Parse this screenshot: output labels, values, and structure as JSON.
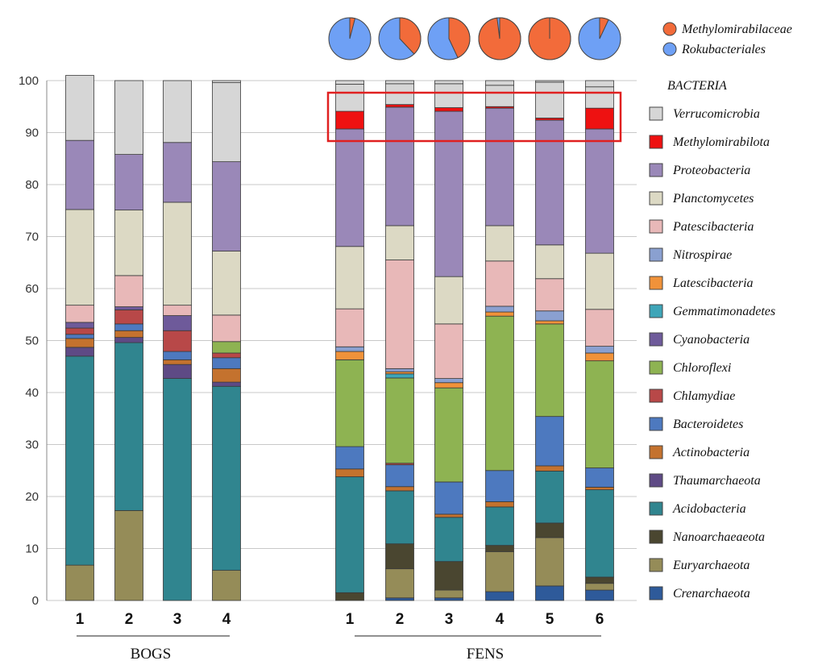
{
  "chart_data": {
    "type": "bar",
    "stacked": true,
    "ylim": [
      0,
      100
    ],
    "yticks": [
      0,
      10,
      20,
      30,
      40,
      50,
      60,
      70,
      80,
      90,
      100
    ],
    "gridlines": true,
    "groups": [
      {
        "label": "BOGS",
        "samples": [
          "1",
          "2",
          "3",
          "4"
        ]
      },
      {
        "label": "FENS",
        "samples": [
          "1",
          "2",
          "3",
          "4",
          "5",
          "6"
        ]
      }
    ],
    "legend_title": "BACTERIA",
    "series": [
      {
        "name": "Crenarchaeota",
        "color": "#2e5a9a",
        "bogs": [
          0,
          0,
          0,
          0
        ],
        "fens": [
          0,
          0.5,
          0.5,
          1.7,
          2.8,
          2.0
        ]
      },
      {
        "name": "Euryarchaeota",
        "color": "#958c58",
        "bogs": [
          6.8,
          17.3,
          0,
          5.8
        ],
        "fens": [
          0,
          5.6,
          1.5,
          7.7,
          9.3,
          1.3
        ]
      },
      {
        "name": "Nanoarchaeaeota",
        "color": "#4a4630",
        "bogs": [
          0,
          0,
          0,
          0
        ],
        "fens": [
          1.5,
          4.8,
          5.5,
          1.2,
          2.8,
          1.2
        ]
      },
      {
        "name": "Acidobacteria",
        "color": "#30858f",
        "bogs": [
          40.2,
          32.3,
          42.7,
          35.4
        ],
        "fens": [
          22.3,
          10.2,
          8.5,
          7.4,
          10.0,
          16.8
        ]
      },
      {
        "name": "Thaumarchaeota",
        "color": "#5e4a85",
        "bogs": [
          1.7,
          1.0,
          2.7,
          0.8
        ],
        "fens": [
          0,
          0,
          0,
          0,
          0,
          0
        ]
      },
      {
        "name": "Actinobacteria",
        "color": "#c4722e",
        "bogs": [
          1.7,
          1.3,
          0.9,
          2.6
        ],
        "fens": [
          1.5,
          0.8,
          0.6,
          1.0,
          1.0,
          0.5
        ]
      },
      {
        "name": "Bacteroidetes",
        "color": "#4d79bf",
        "bogs": [
          0.8,
          1.3,
          1.6,
          2.1
        ],
        "fens": [
          4.3,
          4.2,
          6.2,
          6.0,
          9.5,
          3.7
        ]
      },
      {
        "name": "Chlamydiae",
        "color": "#b84848",
        "bogs": [
          1.2,
          2.7,
          4.0,
          0.9
        ],
        "fens": [
          0,
          0.3,
          0,
          0,
          0,
          0
        ]
      },
      {
        "name": "Chloroflexi",
        "color": "#8eb352",
        "bogs": [
          0,
          0,
          0,
          2.2
        ],
        "fens": [
          16.7,
          16.4,
          18.1,
          29.7,
          17.8,
          20.6
        ]
      },
      {
        "name": "Cyanobacteria",
        "color": "#6e5a9a",
        "bogs": [
          1.1,
          0.6,
          2.9,
          0
        ],
        "fens": [
          0,
          0,
          0,
          0,
          0,
          0
        ]
      },
      {
        "name": "Gemmatimonadetes",
        "color": "#3ea5b8",
        "bogs": [
          0,
          0,
          0,
          0
        ],
        "fens": [
          0,
          0.8,
          0,
          0,
          0,
          0
        ]
      },
      {
        "name": "Latescibacteria",
        "color": "#f0923a",
        "bogs": [
          0,
          0,
          0,
          0
        ],
        "fens": [
          1.6,
          0.4,
          1.0,
          0.8,
          0.6,
          1.5
        ]
      },
      {
        "name": "Nitrospirae",
        "color": "#8aa0d0",
        "bogs": [
          0,
          0,
          0,
          0
        ],
        "fens": [
          0.9,
          0.6,
          0.8,
          1.1,
          1.9,
          1.3
        ]
      },
      {
        "name": "Patescibacteria",
        "color": "#e8b8b8",
        "bogs": [
          3.3,
          6.0,
          2.0,
          5.1
        ],
        "fens": [
          7.3,
          20.9,
          10.5,
          8.7,
          6.2,
          7.1
        ]
      },
      {
        "name": "Planctomycetes",
        "color": "#dcd9c4",
        "bogs": [
          18.4,
          12.6,
          19.8,
          12.3
        ],
        "fens": [
          12.0,
          6.6,
          9.1,
          6.8,
          6.5,
          10.8
        ]
      },
      {
        "name": "Proteobacteria",
        "color": "#9a88b8",
        "bogs": [
          13.3,
          10.7,
          11.5,
          17.2
        ],
        "fens": [
          22.6,
          22.8,
          31.8,
          22.6,
          24.0,
          23.9
        ]
      },
      {
        "name": "Methylomirabilota",
        "color": "#ee1111",
        "bogs": [
          0,
          0,
          0,
          0
        ],
        "fens": [
          3.4,
          0.5,
          0.7,
          0.3,
          0.4,
          4.0
        ]
      },
      {
        "name": "Verrucomicrobia",
        "color": "#d6d6d6",
        "bogs": [
          12.5,
          14.2,
          11.9,
          15.2
        ],
        "fens": [
          5.2,
          4.0,
          4.6,
          4.1,
          6.9,
          4.1
        ]
      }
    ],
    "pies": {
      "group": "FENS",
      "series": [
        {
          "name": "Methylomirabilaceae",
          "color": "#f26b3a"
        },
        {
          "name": "Rokubacteriales",
          "color": "#6ea0f5"
        }
      ],
      "methylomirabilaceae_fraction": [
        0.04,
        0.38,
        0.43,
        0.98,
        1.0,
        0.07
      ]
    },
    "highlight": {
      "group": "FENS",
      "series": "Methylomirabilota",
      "color": "#e02020"
    }
  }
}
